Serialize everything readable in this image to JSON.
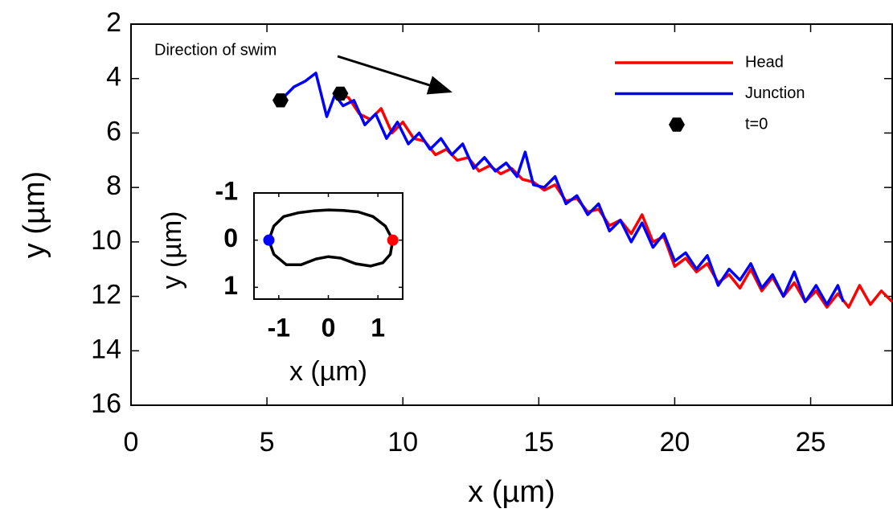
{
  "chart_data": [
    {
      "type": "line",
      "xlabel": "x (µm)",
      "ylabel": "y (µm)",
      "annotation": "Direction of swim",
      "xlim": [
        0,
        28
      ],
      "ylim": [
        2,
        16
      ],
      "yreverse": true,
      "xticks": [
        0,
        5,
        10,
        15,
        20,
        25
      ],
      "yticks": [
        2,
        4,
        6,
        8,
        10,
        12,
        14,
        16
      ],
      "legend": "upper right",
      "series": [
        {
          "name": "Head",
          "color": "#ff0000",
          "x": [
            7.7,
            8.0,
            8.4,
            8.8,
            9.2,
            9.6,
            10.0,
            10.4,
            10.8,
            11.2,
            11.6,
            12.0,
            12.4,
            12.8,
            13.2,
            13.6,
            14.0,
            14.4,
            14.8,
            15.2,
            15.6,
            16.0,
            16.4,
            16.8,
            17.2,
            17.6,
            18.0,
            18.4,
            18.8,
            19.2,
            19.6,
            20.0,
            20.4,
            20.8,
            21.2,
            21.6,
            22.0,
            22.4,
            22.8,
            23.2,
            23.6,
            24.0,
            24.4,
            24.8,
            25.2,
            25.6,
            26.0,
            26.4,
            26.8,
            27.2,
            27.6,
            28.0
          ],
          "values": [
            4.6,
            4.7,
            5.3,
            5.5,
            5.1,
            6.0,
            5.6,
            6.2,
            6.3,
            6.8,
            6.6,
            7.0,
            6.9,
            7.4,
            7.2,
            7.5,
            7.3,
            7.7,
            7.8,
            8.1,
            7.9,
            8.5,
            8.4,
            8.9,
            8.8,
            9.4,
            9.2,
            9.7,
            9.0,
            10.0,
            9.8,
            10.9,
            10.6,
            11.1,
            10.8,
            11.5,
            11.2,
            11.7,
            11.0,
            11.8,
            11.3,
            12.0,
            11.5,
            12.2,
            11.8,
            12.4,
            11.9,
            12.4,
            11.6,
            12.3,
            11.8,
            12.2
          ]
        },
        {
          "name": "Junction",
          "color": "#0000ff",
          "x": [
            5.6,
            6.0,
            6.4,
            6.8,
            7.0,
            7.2,
            7.5,
            7.8,
            8.2,
            8.6,
            9.0,
            9.4,
            9.8,
            10.2,
            10.6,
            11.0,
            11.4,
            11.8,
            12.2,
            12.6,
            13.0,
            13.4,
            13.8,
            14.2,
            14.5,
            14.8,
            15.2,
            15.6,
            16.0,
            16.4,
            16.8,
            17.2,
            17.6,
            18.0,
            18.4,
            18.8,
            19.2,
            19.6,
            20.0,
            20.4,
            20.8,
            21.2,
            21.6,
            22.0,
            22.4,
            22.8,
            23.2,
            23.6,
            24.0,
            24.4,
            24.8,
            25.2,
            25.6,
            26.0,
            26.2
          ],
          "values": [
            4.7,
            4.3,
            4.1,
            3.8,
            4.6,
            5.4,
            4.6,
            5.0,
            4.8,
            5.7,
            5.3,
            6.2,
            5.6,
            6.4,
            6.0,
            6.6,
            6.2,
            6.8,
            6.4,
            7.3,
            6.9,
            7.4,
            7.1,
            7.6,
            6.7,
            7.9,
            8.0,
            7.6,
            8.6,
            8.3,
            9.0,
            8.6,
            9.6,
            9.2,
            10.0,
            9.3,
            10.2,
            9.7,
            10.7,
            10.4,
            11.0,
            10.5,
            11.6,
            11.0,
            11.4,
            10.8,
            11.7,
            11.2,
            12.0,
            11.1,
            12.2,
            11.6,
            12.3,
            11.6,
            12.2
          ]
        },
        {
          "name": "t=0",
          "color": "#000000",
          "marker": "hexagon",
          "x": [
            5.5,
            7.7
          ],
          "values": [
            4.8,
            4.55
          ]
        }
      ]
    },
    {
      "type": "line",
      "xlabel": "x (µm)",
      "ylabel": "y (µm)",
      "xlim": [
        -1.5,
        1.5
      ],
      "ylim": [
        -1,
        1.25
      ],
      "yreverse": true,
      "xticks": [
        -1,
        0,
        1
      ],
      "yticks": [
        -1,
        0,
        1
      ],
      "series": [
        {
          "color": "#000000",
          "x": [
            -1.2,
            -1.1,
            -0.9,
            -0.6,
            -0.3,
            0,
            0.3,
            0.6,
            0.9,
            1.15,
            1.3,
            1.25,
            1.1,
            0.85,
            0.55,
            0.25,
            0,
            -0.25,
            -0.55,
            -0.85,
            -1.1,
            -1.2
          ],
          "values": [
            0,
            -0.3,
            -0.5,
            -0.58,
            -0.62,
            -0.64,
            -0.63,
            -0.6,
            -0.5,
            -0.3,
            0,
            0.3,
            0.48,
            0.55,
            0.5,
            0.38,
            0.35,
            0.4,
            0.52,
            0.52,
            0.3,
            0
          ]
        },
        {
          "color": "#0000ff",
          "marker": "circle",
          "x": [
            -1.2
          ],
          "values": [
            0
          ]
        },
        {
          "color": "#ff0000",
          "marker": "circle",
          "x": [
            1.3
          ],
          "values": [
            0
          ]
        }
      ]
    }
  ]
}
